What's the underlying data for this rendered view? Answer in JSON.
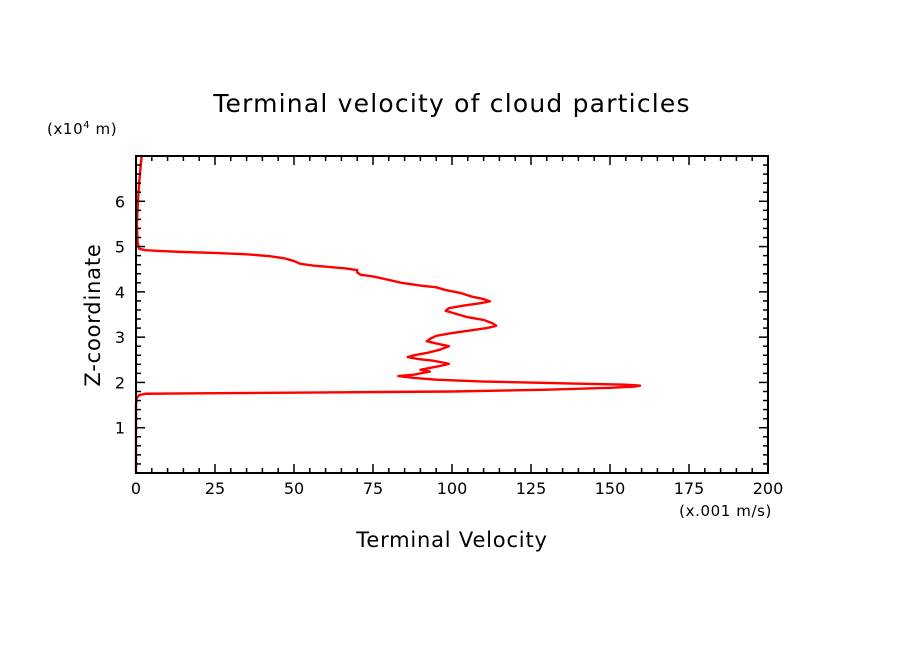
{
  "chart_data": {
    "type": "line",
    "title": "Terminal velocity of cloud particles",
    "xlabel": "Terminal Velocity",
    "ylabel": "Z-coordinate",
    "x_unit": "(x.001 m/s)",
    "y_unit_prefix": "(x10",
    "y_unit_exp": "4",
    "y_unit_suffix": " m)",
    "xlim": [
      0,
      200
    ],
    "ylim": [
      0,
      7
    ],
    "x_ticks": [
      0,
      25,
      50,
      75,
      100,
      125,
      150,
      175,
      200
    ],
    "x_tick_labels": [
      "0",
      "25",
      "50",
      "75",
      "100",
      "125",
      "150",
      "175",
      "200"
    ],
    "y_ticks": [
      1,
      2,
      3,
      4,
      5,
      6
    ],
    "y_tick_labels": [
      "1",
      "2",
      "3",
      "4",
      "5",
      "6"
    ],
    "grid": false,
    "series": [
      {
        "color": "#ff0000",
        "points": [
          [
            0,
            0.0
          ],
          [
            0,
            0.5
          ],
          [
            0,
            1.0
          ],
          [
            0,
            1.5
          ],
          [
            0.2,
            1.65
          ],
          [
            1,
            1.72
          ],
          [
            3,
            1.75
          ],
          [
            20,
            1.76
          ],
          [
            60,
            1.78
          ],
          [
            100,
            1.8
          ],
          [
            130,
            1.84
          ],
          [
            150,
            1.88
          ],
          [
            158,
            1.91
          ],
          [
            159.5,
            1.93
          ],
          [
            155,
            1.95
          ],
          [
            135,
            1.98
          ],
          [
            110,
            2.02
          ],
          [
            95,
            2.06
          ],
          [
            88,
            2.1
          ],
          [
            83,
            2.14
          ],
          [
            88,
            2.17
          ],
          [
            90,
            2.2
          ],
          [
            93,
            2.24
          ],
          [
            90,
            2.28
          ],
          [
            93,
            2.32
          ],
          [
            96,
            2.36
          ],
          [
            99,
            2.41
          ],
          [
            97,
            2.44
          ],
          [
            94,
            2.48
          ],
          [
            89,
            2.52
          ],
          [
            86,
            2.56
          ],
          [
            88,
            2.6
          ],
          [
            92,
            2.65
          ],
          [
            96,
            2.72
          ],
          [
            99,
            2.8
          ],
          [
            95,
            2.86
          ],
          [
            92,
            2.91
          ],
          [
            93,
            2.96
          ],
          [
            95,
            3.03
          ],
          [
            100,
            3.09
          ],
          [
            105,
            3.14
          ],
          [
            111,
            3.2
          ],
          [
            114,
            3.25
          ],
          [
            113,
            3.3
          ],
          [
            110,
            3.38
          ],
          [
            105,
            3.44
          ],
          [
            102,
            3.5
          ],
          [
            98,
            3.58
          ],
          [
            99,
            3.64
          ],
          [
            104,
            3.7
          ],
          [
            109,
            3.75
          ],
          [
            112,
            3.79
          ],
          [
            110,
            3.84
          ],
          [
            106,
            3.9
          ],
          [
            103,
            3.97
          ],
          [
            98,
            4.04
          ],
          [
            95,
            4.1
          ],
          [
            90,
            4.14
          ],
          [
            84,
            4.2
          ],
          [
            79,
            4.28
          ],
          [
            75,
            4.34
          ],
          [
            71,
            4.38
          ],
          [
            70,
            4.43
          ],
          [
            70,
            4.48
          ],
          [
            66,
            4.52
          ],
          [
            61,
            4.55
          ],
          [
            56,
            4.58
          ],
          [
            52,
            4.62
          ],
          [
            50,
            4.68
          ],
          [
            47,
            4.74
          ],
          [
            42,
            4.79
          ],
          [
            35,
            4.83
          ],
          [
            25,
            4.86
          ],
          [
            15,
            4.88
          ],
          [
            8,
            4.9
          ],
          [
            3,
            4.92
          ],
          [
            1,
            4.95
          ],
          [
            0.5,
            5.1
          ],
          [
            0.3,
            5.5
          ],
          [
            0.6,
            6.0
          ],
          [
            1,
            6.4
          ],
          [
            1.5,
            6.8
          ],
          [
            1.8,
            7.0
          ]
        ]
      }
    ]
  }
}
